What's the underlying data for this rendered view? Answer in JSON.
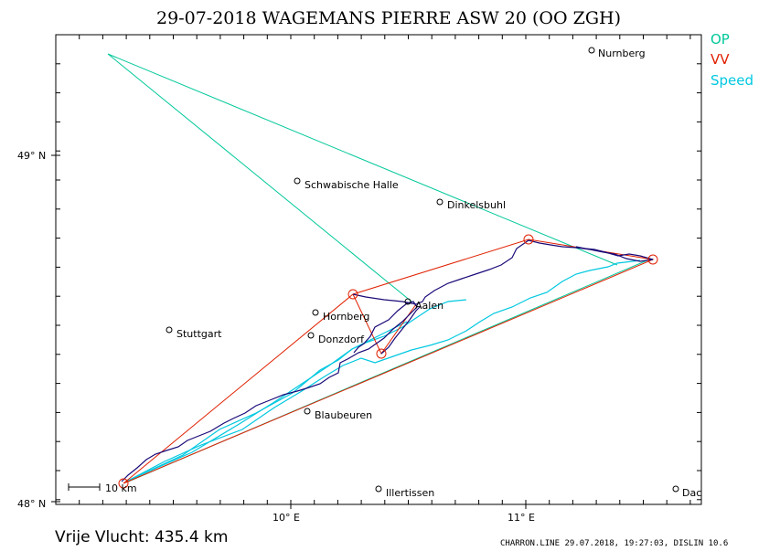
{
  "title": "29-07-2018   WAGEMANS PIERRE   ASW 20 (OO ZGH)",
  "legend": [
    {
      "label": "OP",
      "color": "#00c89a"
    },
    {
      "label": "VV",
      "color": "#e02000"
    },
    {
      "label": "Speed",
      "color": "#00c8e0"
    }
  ],
  "axis": {
    "lat_labels": [
      "49° N",
      "48° N"
    ],
    "lon_labels": [
      "10° E",
      "11° E"
    ]
  },
  "scale_bar": "10  km",
  "distance": "Vrije Vlucht:  435.4 km",
  "footer": "CHARRON.LINE 29.07.2018, 19:27:03, DISLIN 10.6",
  "colors": {
    "track": "#1a0a78",
    "op_line": "#00c89a",
    "vv_line": "#e02000",
    "speed": "#00c8e0"
  },
  "cities": [
    {
      "name": "Nurnberg"
    },
    {
      "name": "Schwabische Halle"
    },
    {
      "name": "Dinkelsbuhl"
    },
    {
      "name": "Aalen"
    },
    {
      "name": "Hornberg"
    },
    {
      "name": "Stuttgart"
    },
    {
      "name": "Donzdorf"
    },
    {
      "name": "Blaubeuren"
    },
    {
      "name": "Illertissen"
    },
    {
      "name": "Dac"
    }
  ]
}
